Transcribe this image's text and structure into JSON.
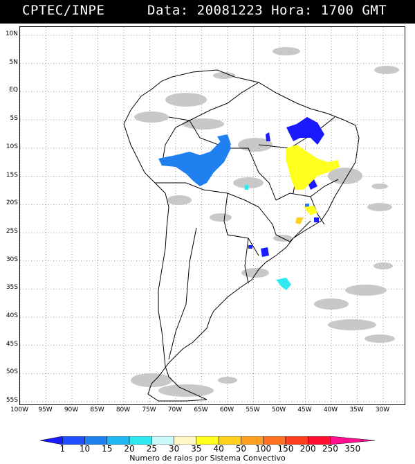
{
  "header": {
    "title_left": "CPTEC/INPE",
    "title_right": "Data: 20081223 Hora: 1700 GMT"
  },
  "map": {
    "lat_labels": [
      "10N",
      "5N",
      "EQ",
      "5S",
      "10S",
      "15S",
      "20S",
      "25S",
      "30S",
      "35S",
      "40S",
      "45S",
      "50S",
      "55S"
    ],
    "lon_labels": [
      "100W",
      "95W",
      "90W",
      "85W",
      "80W",
      "75W",
      "70W",
      "65W",
      "60W",
      "55W",
      "50W",
      "45W",
      "40W",
      "35W",
      "30W"
    ],
    "region": "South America",
    "grid": "dotted",
    "cloud_color": "#c8c8c8",
    "coast_color": "#000000"
  },
  "legend": {
    "title": "Numero de raios por Sistema Convectivo",
    "ticks": [
      "1",
      "10",
      "15",
      "20",
      "25",
      "30",
      "35",
      "40",
      "50",
      "100",
      "150",
      "200",
      "250",
      "350"
    ],
    "colors": [
      "#1a1aff",
      "#2050ff",
      "#2080f0",
      "#20b8f0",
      "#30e8f0",
      "#c8f8f8",
      "#fff8c8",
      "#ffff20",
      "#ffd020",
      "#ffa020",
      "#ff7020",
      "#ff4020",
      "#ff1030",
      "#ff1090"
    ]
  }
}
